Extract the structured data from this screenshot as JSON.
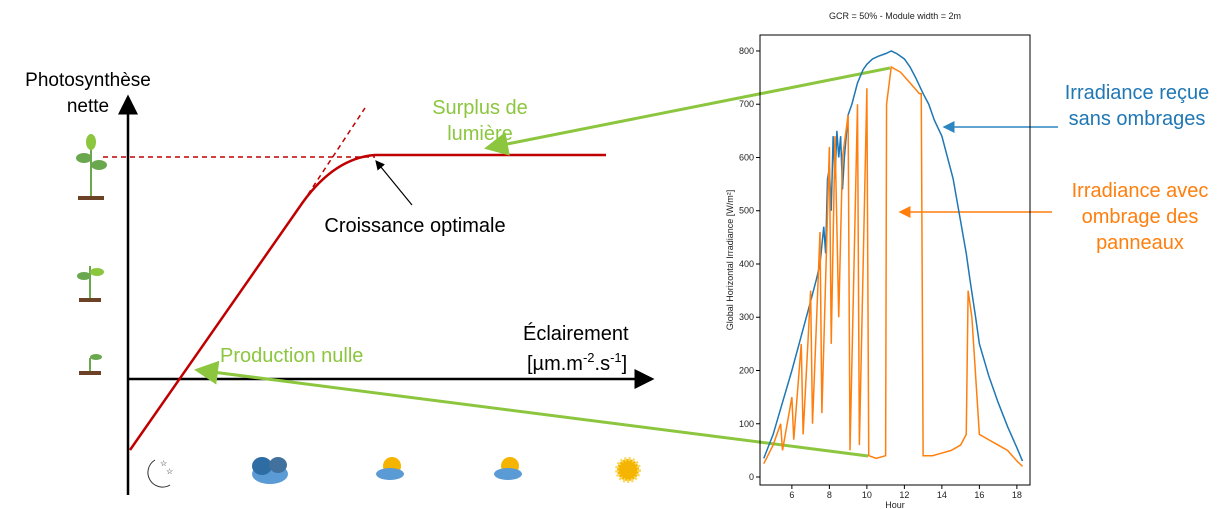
{
  "diagram": {
    "y_axis_label": "Photosynthèse nette",
    "x_axis_label": {
      "word": "Éclairement",
      "unit_parts": [
        "[µm.m",
        "-2",
        ".s",
        "-1",
        "]"
      ]
    },
    "surplus_label": "Surplus de lumière",
    "optimal_label": "Croissance optimale",
    "zero_label": "Production nulle"
  },
  "chart_data": {
    "type": "line",
    "title": "GCR = 50% - Module width = 2m",
    "x_label": "Hour",
    "y_label": "Global Horizontal Irradiance [W/m²]",
    "xlim": [
      4.3,
      18.7
    ],
    "ylim": [
      -15,
      830
    ],
    "xticks": [
      6,
      8,
      10,
      12,
      14,
      16,
      18
    ],
    "yticks": [
      0,
      100,
      200,
      300,
      400,
      500,
      600,
      700,
      800
    ],
    "series": [
      {
        "name": "Irradiance reçue sans ombrages",
        "color": "#1f77b4",
        "x": [
          4.5,
          5,
          5.5,
          6,
          6.5,
          7,
          7.3,
          7.5,
          7.7,
          7.8,
          7.9,
          8,
          8.1,
          8.2,
          8.3,
          8.4,
          8.5,
          8.6,
          8.7,
          8.8,
          9,
          9.2,
          9.5,
          9.8,
          10,
          10.3,
          10.6,
          11,
          11.3,
          11.6,
          12,
          12.3,
          12.6,
          13,
          13.3,
          13.6,
          14,
          14.3,
          14.6,
          15,
          15.3,
          15.5,
          15.8,
          16,
          16.5,
          17,
          17.5,
          18,
          18.3
        ],
        "values": [
          35,
          80,
          140,
          200,
          265,
          330,
          370,
          400,
          470,
          420,
          560,
          580,
          500,
          640,
          560,
          650,
          600,
          640,
          540,
          600,
          680,
          700,
          740,
          765,
          775,
          785,
          790,
          795,
          800,
          795,
          785,
          770,
          750,
          720,
          700,
          670,
          640,
          600,
          560,
          480,
          420,
          370,
          300,
          250,
          190,
          140,
          95,
          55,
          30
        ]
      },
      {
        "name": "Irradiance avec ombrage des panneaux",
        "color": "#ff7f0e",
        "x": [
          4.5,
          5,
          5.4,
          5.5,
          6,
          6.1,
          6.5,
          6.6,
          7,
          7.1,
          7.5,
          7.6,
          8,
          8.1,
          8.3,
          8.5,
          8.7,
          9,
          9.1,
          9.5,
          9.6,
          10,
          10.1,
          10.5,
          11,
          11.05,
          11.3,
          11.8,
          12.3,
          12.8,
          12.9,
          13,
          13.5,
          14,
          14.5,
          15,
          15.3,
          15.4,
          15.6,
          16,
          16.5,
          17,
          17.5,
          18,
          18.3
        ],
        "values": [
          25,
          60,
          100,
          50,
          150,
          70,
          250,
          80,
          350,
          100,
          460,
          120,
          620,
          250,
          640,
          300,
          600,
          680,
          50,
          700,
          60,
          730,
          40,
          35,
          40,
          700,
          770,
          760,
          740,
          720,
          720,
          40,
          40,
          45,
          50,
          60,
          80,
          350,
          300,
          80,
          70,
          60,
          50,
          30,
          20
        ]
      }
    ]
  }
}
